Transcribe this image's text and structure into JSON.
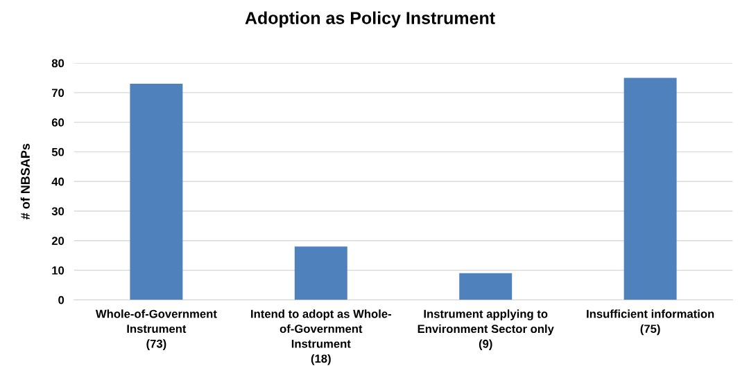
{
  "chart_data": {
    "type": "bar",
    "title": "Adoption as Policy Instrument",
    "ylabel": "# of NBSAPs",
    "categories": [
      "Whole-of-Government\nInstrument\n(73)",
      "Intend to adopt as Whole-\nof-Government\nInstrument\n(18)",
      "Instrument applying to\nEnvironment Sector only\n(9)",
      "Insufficient information\n(75)"
    ],
    "values": [
      73,
      18,
      9,
      75
    ],
    "color": "#4f81bd",
    "ylim": [
      0,
      80
    ],
    "yticks": [
      0,
      10,
      20,
      30,
      40,
      50,
      60,
      70,
      80
    ],
    "grid": "y",
    "legend": false
  }
}
